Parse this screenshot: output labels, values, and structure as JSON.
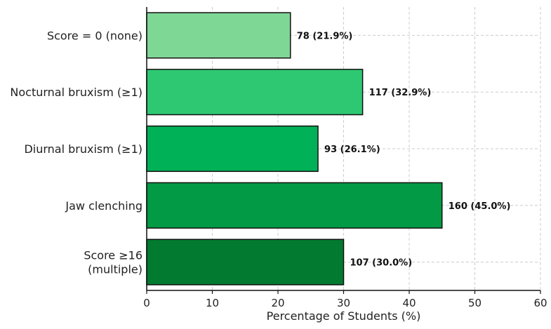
{
  "chart_data": {
    "type": "bar",
    "orientation": "horizontal",
    "categories": [
      "Score = 0 (none)",
      "Nocturnal bruxism (≥1)",
      "Diurnal bruxism (≥1)",
      "Jaw clenching",
      "Score ≥16\n(multiple)"
    ],
    "values": [
      21.9,
      32.9,
      26.1,
      45.0,
      30.0
    ],
    "data_labels": [
      "78 (21.9%)",
      "117 (32.9%)",
      "93 (26.1%)",
      "160 (45.0%)",
      "107 (30.0%)"
    ],
    "colors": [
      "#7fd796",
      "#2ec872",
      "#00b158",
      "#029a45",
      "#027a2f"
    ],
    "xlabel": "Percentage of Students (%)",
    "ylabel": "",
    "title": "",
    "xlim": [
      0,
      60
    ],
    "xticks": [
      0,
      10,
      20,
      30,
      40,
      50,
      60
    ],
    "grid": true
  }
}
